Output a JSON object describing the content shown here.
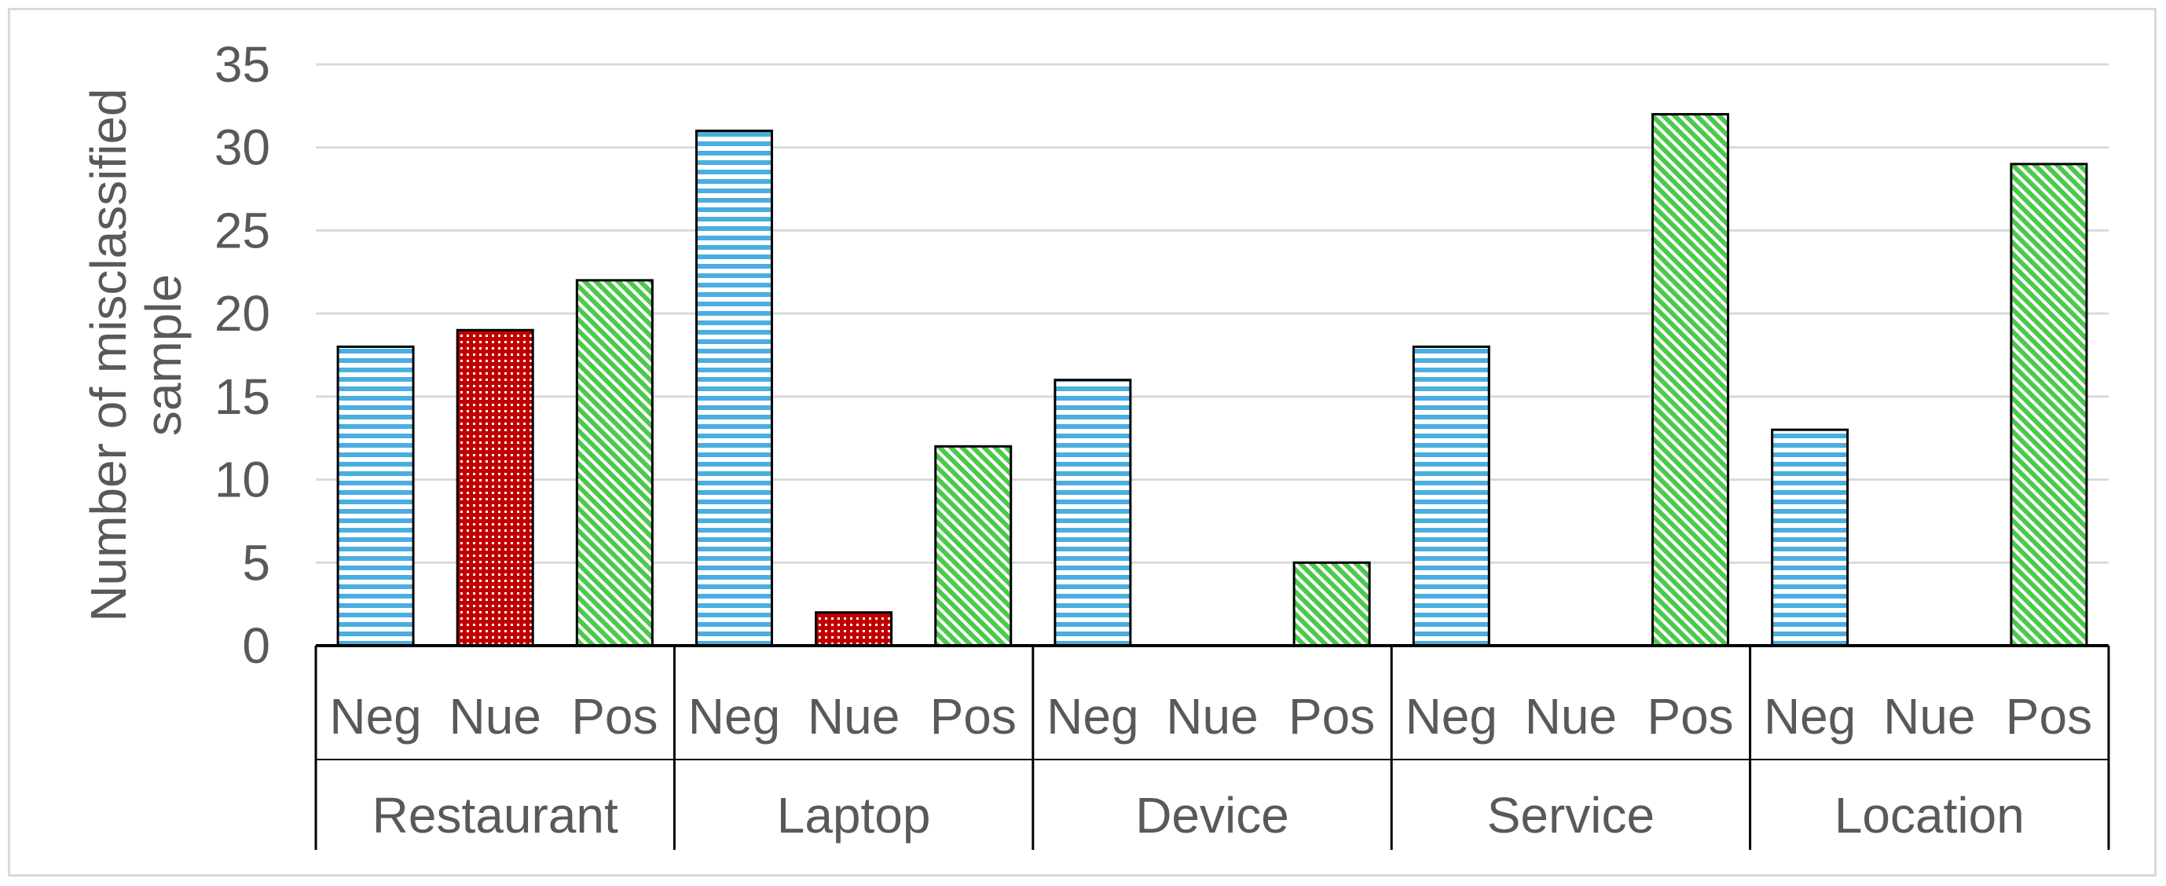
{
  "chart_data": {
    "type": "bar",
    "ylabel": "Number of misclassified sample",
    "ylabel_lines": [
      "Number of misclassified",
      "sample"
    ],
    "ylim": [
      0,
      35
    ],
    "yticks": [
      0,
      5,
      10,
      15,
      20,
      25,
      30,
      35
    ],
    "grid": true,
    "legend": "none",
    "groups": [
      "Restaurant",
      "Laptop",
      "Device",
      "Service",
      "Location"
    ],
    "sub_categories": [
      "Neg",
      "Nue",
      "Pos"
    ],
    "series": [
      {
        "name": "Neg",
        "values": [
          18,
          31,
          16,
          18,
          13
        ],
        "color": "#4aaee0",
        "pattern": "horizontal-stripes"
      },
      {
        "name": "Nue",
        "values": [
          19,
          2,
          0,
          0,
          0
        ],
        "color": "#c00000",
        "pattern": "dots"
      },
      {
        "name": "Pos",
        "values": [
          22,
          12,
          5,
          32,
          29
        ],
        "color": "#4cc94c",
        "pattern": "diagonal-hatch"
      }
    ]
  }
}
